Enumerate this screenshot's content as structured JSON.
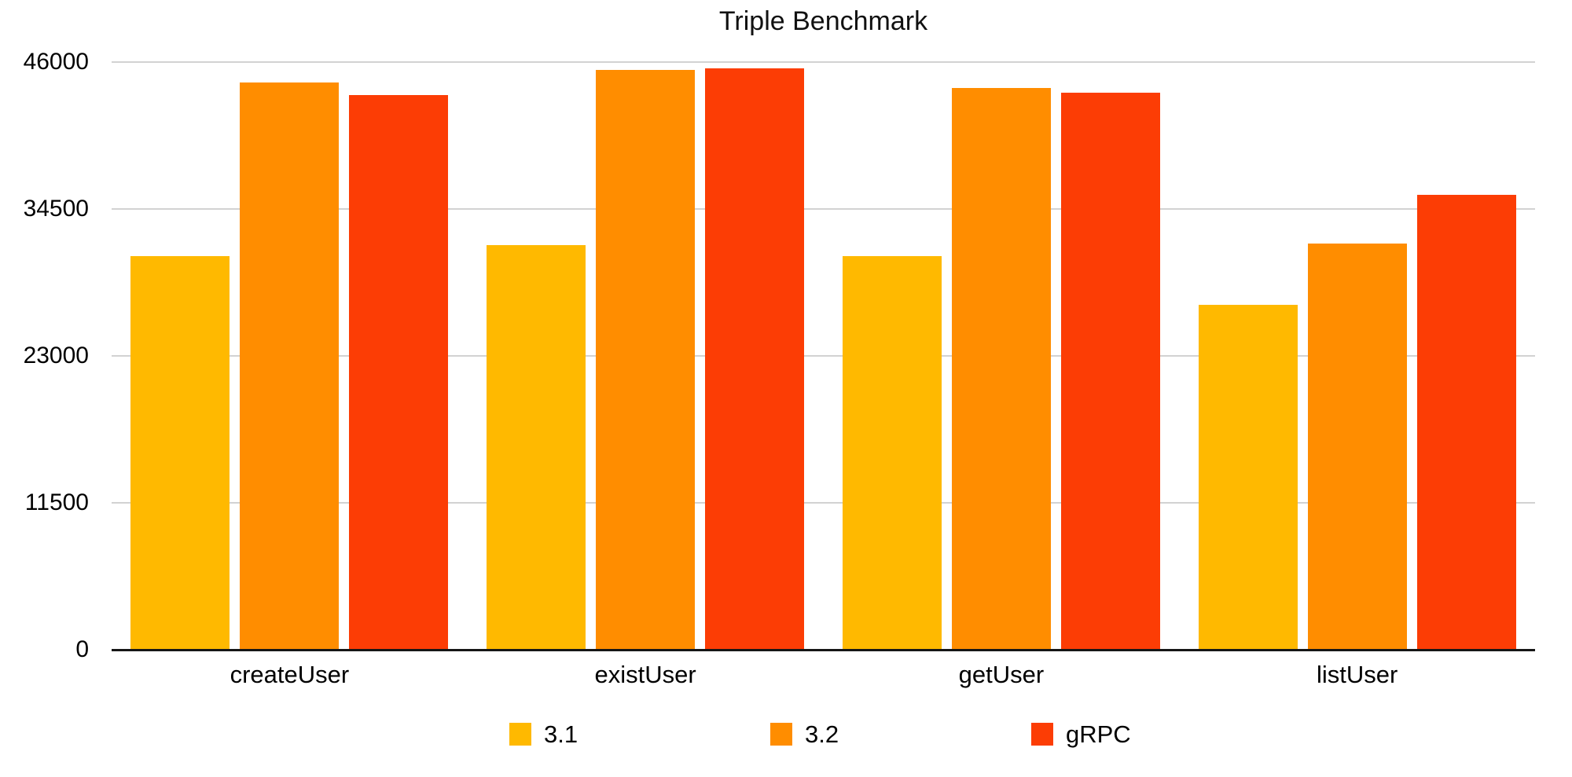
{
  "chart_data": {
    "type": "bar",
    "title": "Triple Benchmark",
    "categories": [
      "createUser",
      "existUser",
      "getUser",
      "listUser"
    ],
    "series": [
      {
        "name": "3.1",
        "color": "#FFB900",
        "values": [
          30800,
          31700,
          30800,
          27000
        ]
      },
      {
        "name": "3.2",
        "color": "#FF8D00",
        "values": [
          44400,
          45400,
          44000,
          31800
        ]
      },
      {
        "name": "gRPC",
        "color": "#FC3D05",
        "values": [
          43400,
          45500,
          43600,
          35600
        ]
      }
    ],
    "ylim": [
      0,
      46000
    ],
    "yticks": [
      0,
      11500,
      23000,
      34500,
      46000
    ],
    "grid": "horizontal",
    "legend_position": "bottom"
  },
  "colors": {
    "background": "#FFFFFF",
    "grid": "#D2D2D2",
    "axis": "#161616",
    "text": "#000000"
  }
}
